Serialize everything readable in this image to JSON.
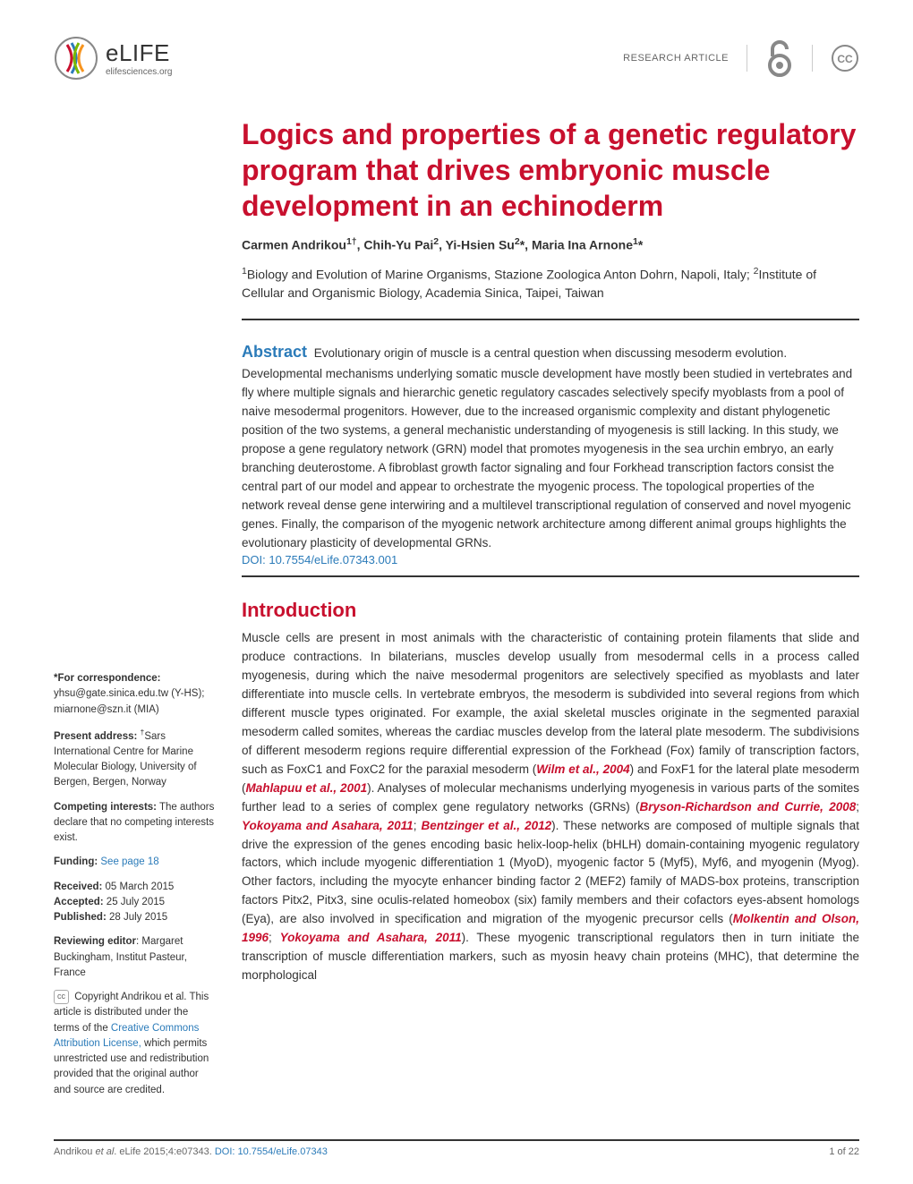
{
  "colors": {
    "title": "#c8102e",
    "link": "#2b7bb9",
    "cite": "#c8102e",
    "abstract_label": "#2b7bb9",
    "intro_heading": "#c8102e",
    "text": "#333333"
  },
  "header": {
    "logo_text": "eLIFE",
    "logo_sub": "elifesciences.org",
    "article_type": "RESEARCH ARTICLE"
  },
  "title": "Logics and properties of a genetic regulatory program that drives embryonic muscle development in an echinoderm",
  "authors_html": "Carmen Andrikou<sup>1†</sup>, Chih-Yu Pai<sup>2</sup>, Yi-Hsien Su<sup>2</sup>*, Maria Ina Arnone<sup>1</sup>*",
  "affiliations_html": "<sup>1</sup>Biology and Evolution of Marine Organisms, Stazione Zoologica Anton Dohrn, Napoli, Italy; <sup>2</sup>Institute of Cellular and Organismic Biology, Academia Sinica, Taipei, Taiwan",
  "abstract": {
    "label": "Abstract",
    "text": "Evolutionary origin of muscle is a central question when discussing mesoderm evolution. Developmental mechanisms underlying somatic muscle development have mostly been studied in vertebrates and fly where multiple signals and hierarchic genetic regulatory cascades selectively specify myoblasts from a pool of naive mesodermal progenitors. However, due to the increased organismic complexity and distant phylogenetic position of the two systems, a general mechanistic understanding of myogenesis is still lacking. In this study, we propose a gene regulatory network (GRN) model that promotes myogenesis in the sea urchin embryo, an early branching deuterostome. A fibroblast growth factor signaling and four Forkhead transcription factors consist the central part of our model and appear to orchestrate the myogenic process. The topological properties of the network reveal dense gene interwiring and a multilevel transcriptional regulation of conserved and novel myogenic genes. Finally, the comparison of the myogenic network architecture among different animal groups highlights the evolutionary plasticity of developmental GRNs.",
    "doi": "DOI: 10.7554/eLife.07343.001"
  },
  "sidebar": {
    "correspondence": {
      "label": "*For correspondence:",
      "text": " yhsu@gate.sinica.edu.tw (Y-HS); miarnone@szn.it (MIA)"
    },
    "present_address": {
      "label": "Present address:",
      "text": " <sup>†</sup>Sars International Centre for Marine Molecular Biology, University of Bergen, Bergen, Norway"
    },
    "competing": {
      "label": "Competing interests:",
      "text": " The authors declare that no competing interests exist."
    },
    "funding": {
      "label": "Funding:",
      "link_text": " See page 18"
    },
    "received": {
      "label": "Received:",
      "value": " 05 March 2015"
    },
    "accepted": {
      "label": "Accepted:",
      "value": " 25 July 2015"
    },
    "published": {
      "label": "Published:",
      "value": " 28 July 2015"
    },
    "reviewing": {
      "label": "Reviewing editor",
      "text": ": Margaret Buckingham, Institut Pasteur, France"
    },
    "copyright": {
      "pre": " Copyright Andrikou et al. This article is distributed under the terms of the ",
      "link": "Creative Commons Attribution License,",
      "post": " which permits unrestricted use and redistribution provided that the original author and source are credited."
    }
  },
  "intro": {
    "heading": "Introduction",
    "body_html": "Muscle cells are present in most animals with the characteristic of containing protein filaments that slide and produce contractions. In bilaterians, muscles develop usually from mesodermal cells in a process called myogenesis, during which the naive mesodermal progenitors are selectively specified as myoblasts and later differentiate into muscle cells. In vertebrate embryos, the mesoderm is subdivided into several regions from which different muscle types originated. For example, the axial skeletal muscles originate in the segmented paraxial mesoderm called somites, whereas the cardiac muscles develop from the lateral plate mesoderm. The subdivisions of different mesoderm regions require differential expression of the Forkhead (Fox) family of transcription factors, such as FoxC1 and FoxC2 for the paraxial mesoderm (<span class='cite'>Wilm et al., 2004</span>) and FoxF1 for the lateral plate mesoderm (<span class='cite'>Mahlapuu et al., 2001</span>). Analyses of molecular mechanisms underlying myogenesis in various parts of the somites further lead to a series of complex gene regulatory networks (GRNs) (<span class='cite'>Bryson-Richardson and Currie, 2008</span>; <span class='cite'>Yokoyama and Asahara, 2011</span>; <span class='cite'>Bentzinger et al., 2012</span>). These networks are composed of multiple signals that drive the expression of the genes encoding basic helix-loop-helix (bHLH) domain-containing myogenic regulatory factors, which include myogenic differentiation 1 (MyoD), myogenic factor 5 (Myf5), Myf6, and myogenin (Myog). Other factors, including the myocyte enhancer binding factor 2 (MEF2) family of MADS-box proteins, transcription factors Pitx2, Pitx3, sine oculis-related homeobox (six) family members and their cofactors eyes-absent homologs (Eya), are also involved in specification and migration of the myogenic precursor cells (<span class='cite'>Molkentin and Olson, 1996</span>; <span class='cite'>Yokoyama and Asahara, 2011</span>). These myogenic transcriptional regulators then in turn initiate the transcription of muscle differentiation markers, such as myosin heavy chain proteins (MHC), that determine the morphological"
  },
  "footer": {
    "citation_pre": "Andrikou ",
    "citation_em": "et al",
    "citation_post": ". eLife 2015;4:e07343. ",
    "doi": "DOI: 10.7554/eLife.07343",
    "page": "1 of 22"
  }
}
